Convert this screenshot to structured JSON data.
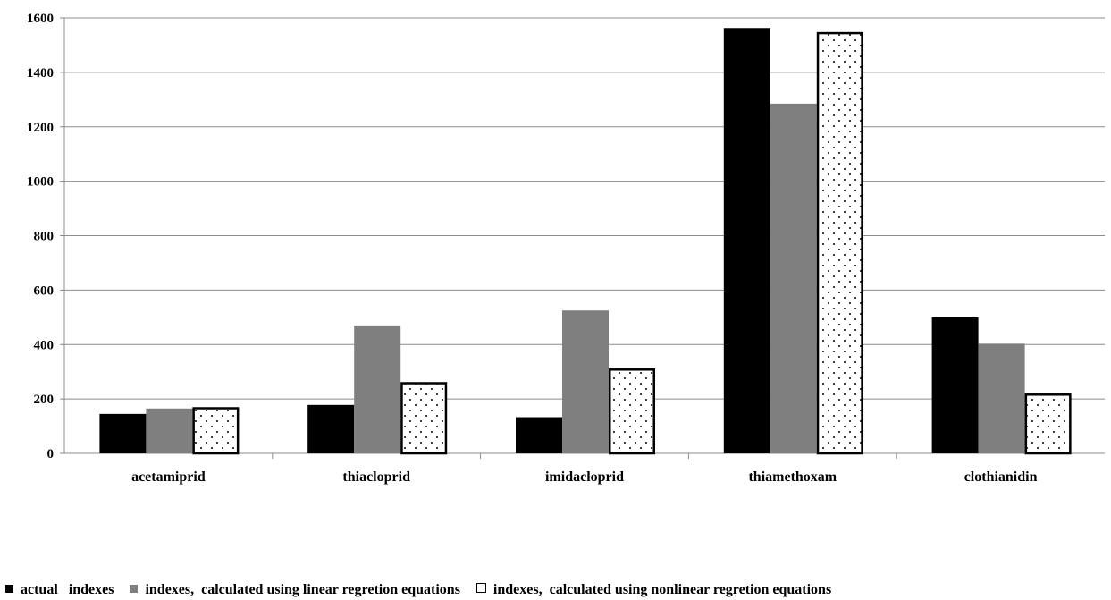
{
  "chart_data": {
    "type": "bar",
    "categories": [
      "acetamiprid",
      "thiacloprid",
      "imidacloprid",
      "thiamethoxam",
      "clothianidin"
    ],
    "series": [
      {
        "name": "actual   indexes",
        "values": [
          145,
          178,
          133,
          1563,
          500
        ],
        "color": "#000000",
        "pattern": "solid"
      },
      {
        "name": "indexes,  calculated using linear regretion equations",
        "values": [
          165,
          467,
          525,
          1285,
          403
        ],
        "color": "#7f7f7f",
        "pattern": "solid"
      },
      {
        "name": "indexes,  calculated using nonlinear regretion equations",
        "values": [
          170,
          262,
          312,
          1548,
          220
        ],
        "color": "#ffffff",
        "pattern": "dotted"
      }
    ],
    "yticks": [
      0,
      200,
      400,
      600,
      800,
      1000,
      1200,
      1400,
      1600
    ],
    "ylim": [
      0,
      1600
    ],
    "grid": true,
    "legend_position": "bottom",
    "title": "",
    "xlabel": "",
    "ylabel": ""
  }
}
